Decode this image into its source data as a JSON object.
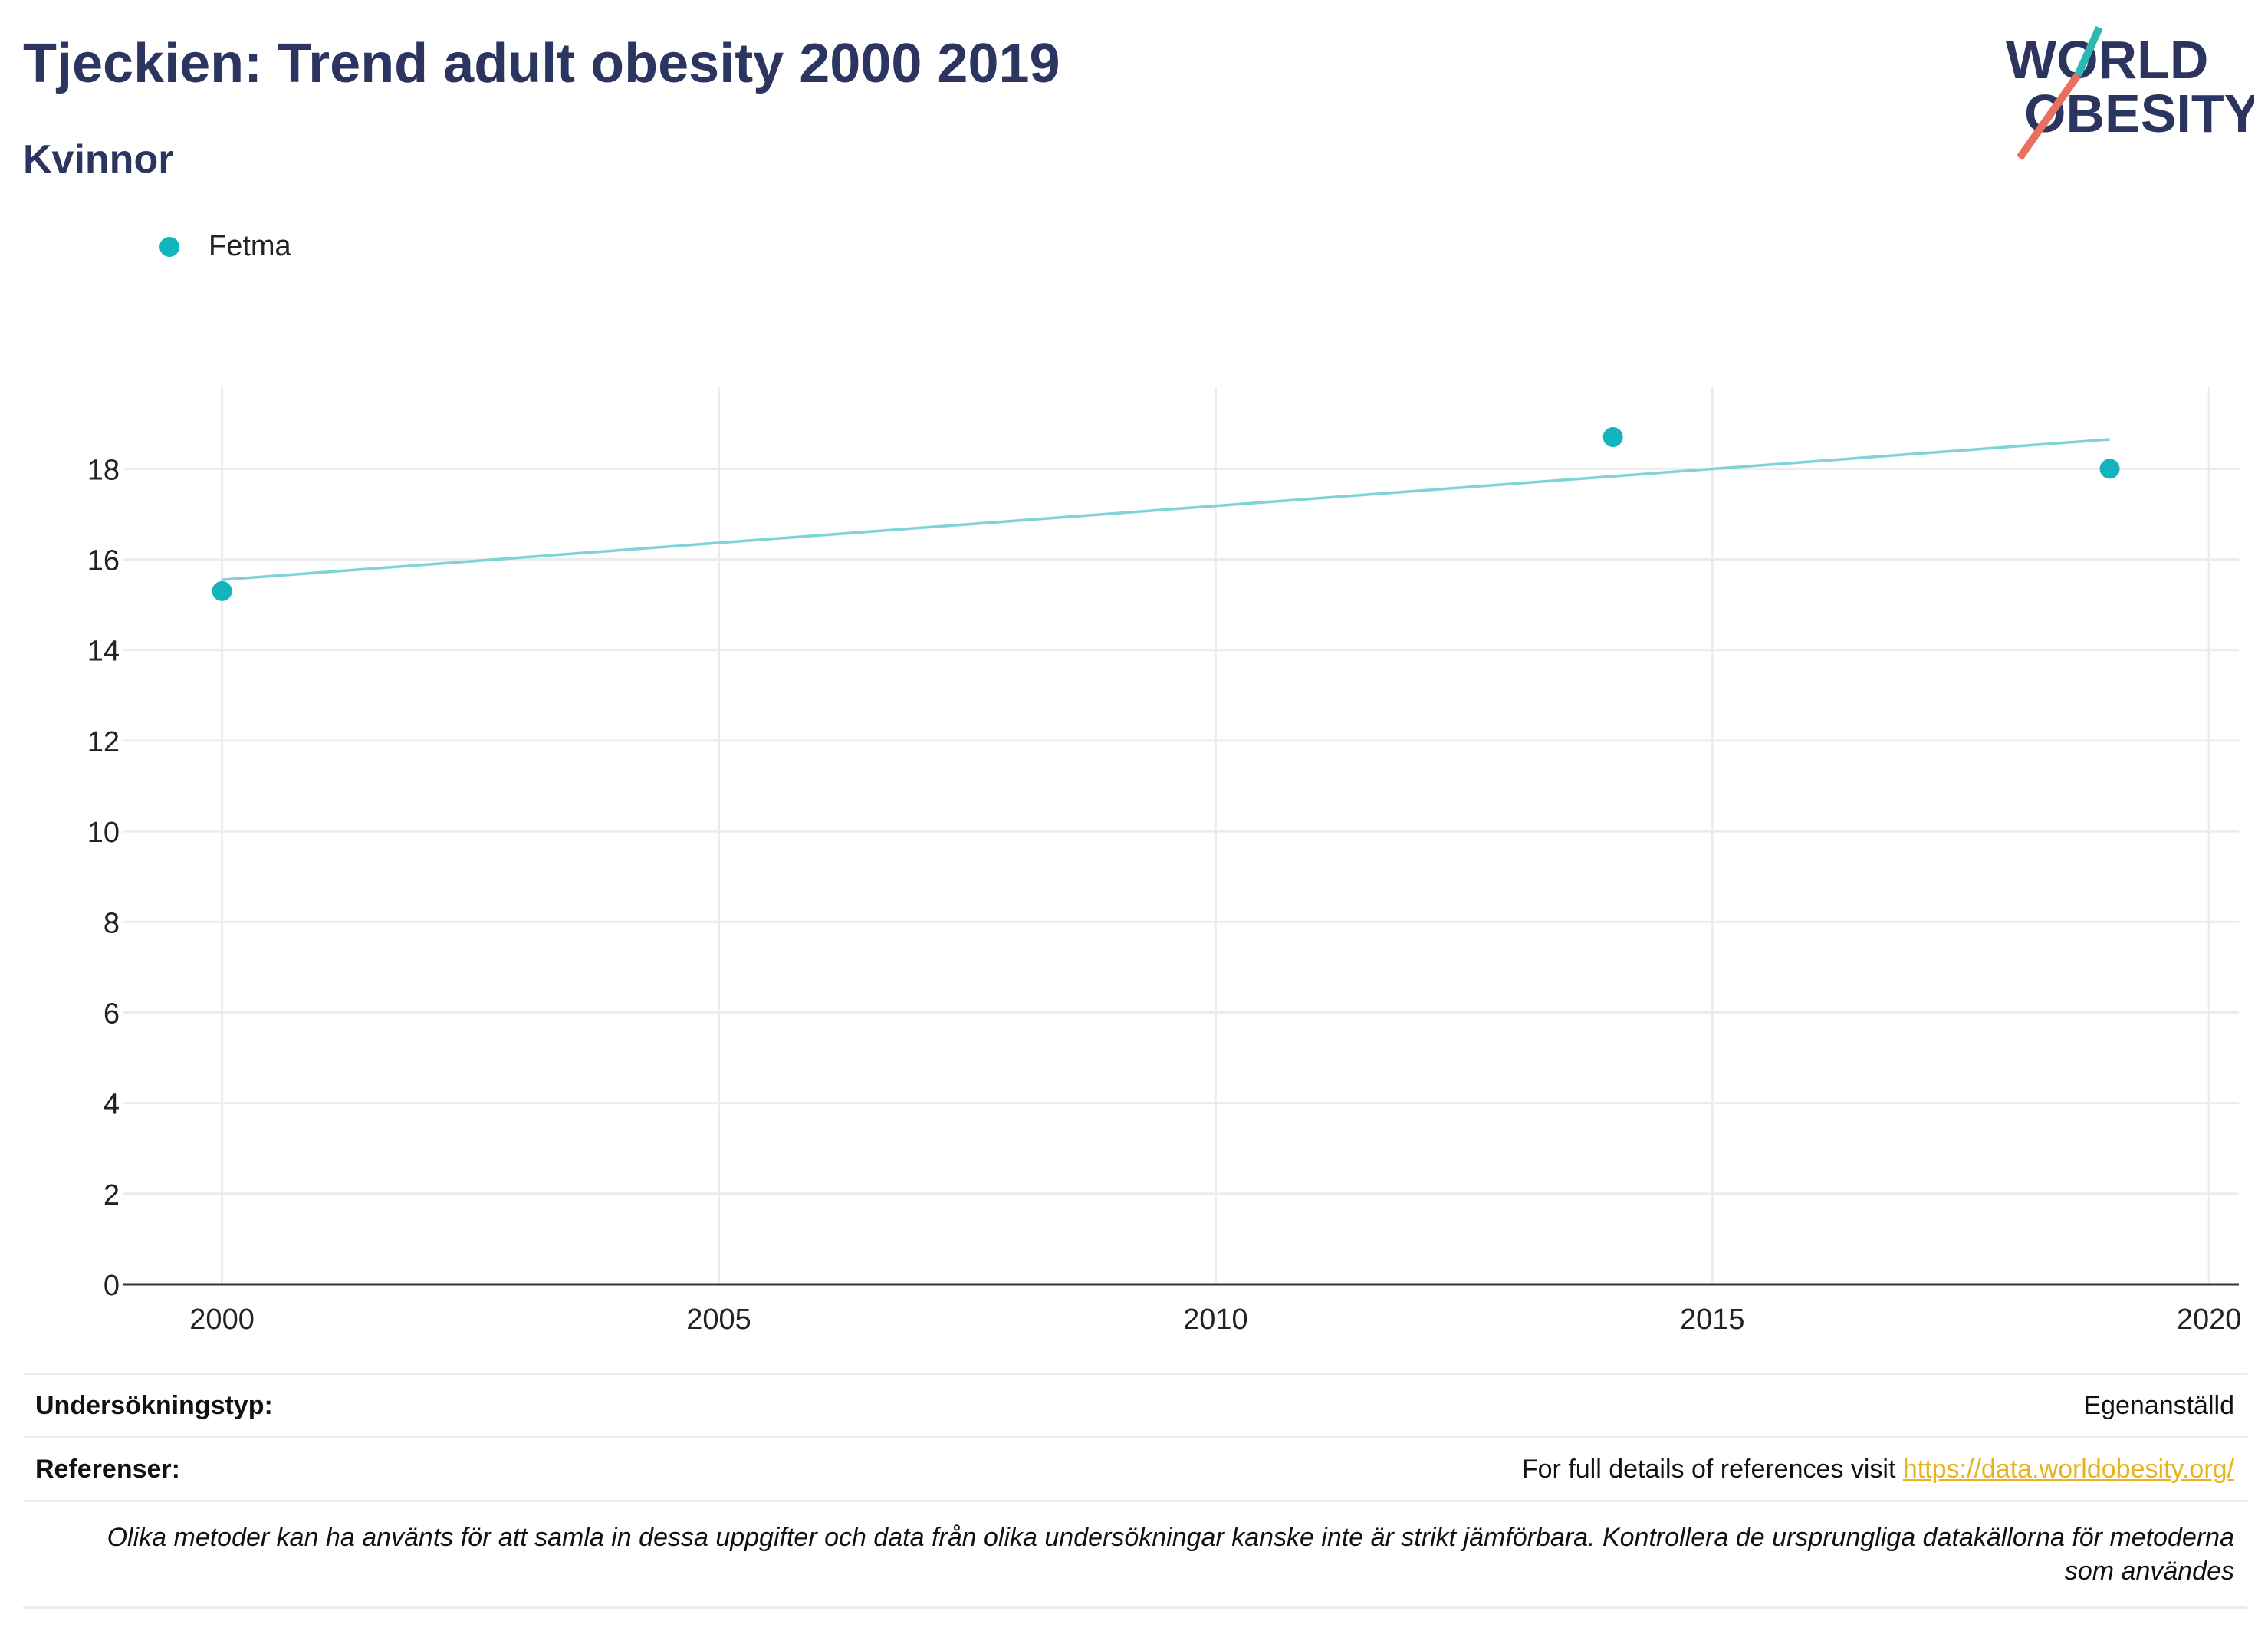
{
  "header": {
    "title": "Tjeckien: Trend adult obesity 2000 2019",
    "subtitle": "Kvinnor",
    "logo_line1": "WORLD",
    "logo_line2": "OBESITY"
  },
  "colors": {
    "title": "#2b355f",
    "series": "#14b4bf",
    "trendline": "#7dd3d8",
    "grid": "#ececec",
    "link": "#e9b21a",
    "logo_accent_teal": "#2fb8b3",
    "logo_accent_red": "#e8705f"
  },
  "chart_data": {
    "type": "scatter",
    "title": "Tjeckien: Trend adult obesity 2000 2019",
    "subtitle": "Kvinnor",
    "xlabel": "",
    "ylabel": "",
    "xlim": [
      1999,
      2020.3
    ],
    "ylim": [
      0,
      19.8
    ],
    "xticks": [
      2000,
      2005,
      2010,
      2015,
      2020
    ],
    "yticks": [
      0,
      2,
      4,
      6,
      8,
      10,
      12,
      14,
      16,
      18
    ],
    "grid": true,
    "legend_position": "top-left",
    "series": [
      {
        "name": "Fetma",
        "x": [
          2000,
          2014,
          2019
        ],
        "y": [
          15.3,
          18.7,
          18.0
        ]
      }
    ],
    "trendline": {
      "x": [
        2000,
        2019
      ],
      "y": [
        15.55,
        18.65
      ]
    }
  },
  "footer": {
    "survey_type_label": "Undersökningstyp:",
    "survey_type_value": "Egenanställd",
    "references_label": "Referenser:",
    "references_text": "For full details of references visit ",
    "references_link": "https://data.worldobesity.org/",
    "disclaimer": "Olika metoder kan ha använts för att samla in dessa uppgifter och data från olika undersökningar kanske inte är strikt jämförbara. Kontrollera de ursprungliga datakällorna för metoderna som användes"
  }
}
